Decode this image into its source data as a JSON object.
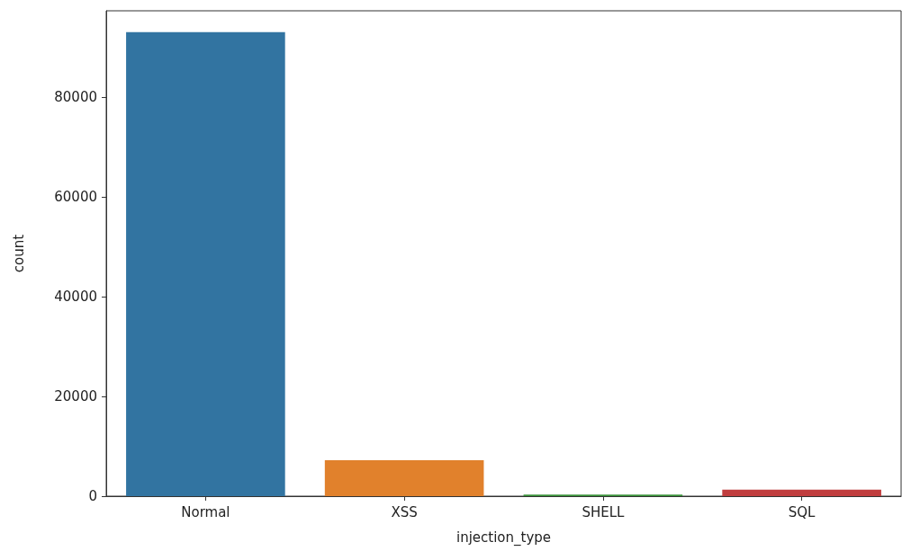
{
  "chart_data": {
    "type": "bar",
    "xlabel": "injection_type",
    "ylabel": "count",
    "categories": [
      "Normal",
      "XSS",
      "SHELL",
      "SQL"
    ],
    "values": [
      93000,
      7200,
      300,
      1300
    ],
    "colors": [
      "#3274a1",
      "#e1812c",
      "#3a923a",
      "#c03d3e"
    ],
    "ylim": [
      0,
      97300
    ],
    "yticks": [
      0,
      20000,
      40000,
      60000,
      80000
    ],
    "grid": false
  }
}
